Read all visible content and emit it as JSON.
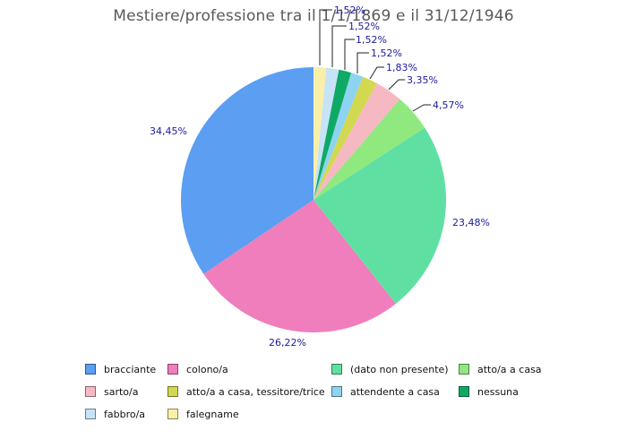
{
  "title": "Mestiere/professione tra il 1/1/1869 e il 31/12/1946",
  "chart_data": {
    "type": "pie",
    "title": "Mestiere/professione tra il 1/1/1869 e il 31/12/1946",
    "start_angle": "12-oclock",
    "direction": "counterclockwise",
    "legend_position": "bottom",
    "label_color": "#1b1b9e",
    "title_color": "#595959",
    "slices": [
      {
        "label": "bracciante",
        "value_pct": 34.45,
        "pct_label": "34,45%",
        "color": "#5b9ef2"
      },
      {
        "label": "colono/a",
        "value_pct": 26.22,
        "pct_label": "26,22%",
        "color": "#f07dbc"
      },
      {
        "label": "(dato non presente)",
        "value_pct": 23.48,
        "pct_label": "23,48%",
        "color": "#5fe0a2"
      },
      {
        "label": "atto/a a casa",
        "value_pct": 4.57,
        "pct_label": "4,57%",
        "color": "#8fe97f"
      },
      {
        "label": "sarto/a",
        "value_pct": 3.35,
        "pct_label": "3,35%",
        "color": "#f6b8c3"
      },
      {
        "label": "atto/a a casa, tessitore/trice",
        "value_pct": 1.83,
        "pct_label": "1,83%",
        "color": "#d2d84f"
      },
      {
        "label": "attendente a casa",
        "value_pct": 1.52,
        "pct_label": "1,52%",
        "color": "#8ed3f0"
      },
      {
        "label": "nessuna",
        "value_pct": 1.52,
        "pct_label": "1,52%",
        "color": "#0fa966"
      },
      {
        "label": "fabbro/a",
        "value_pct": 1.52,
        "pct_label": "1,52%",
        "color": "#c6e3f7"
      },
      {
        "label": "falegname",
        "value_pct": 1.52,
        "pct_label": "1,52%",
        "color": "#f8f0a8"
      }
    ]
  }
}
